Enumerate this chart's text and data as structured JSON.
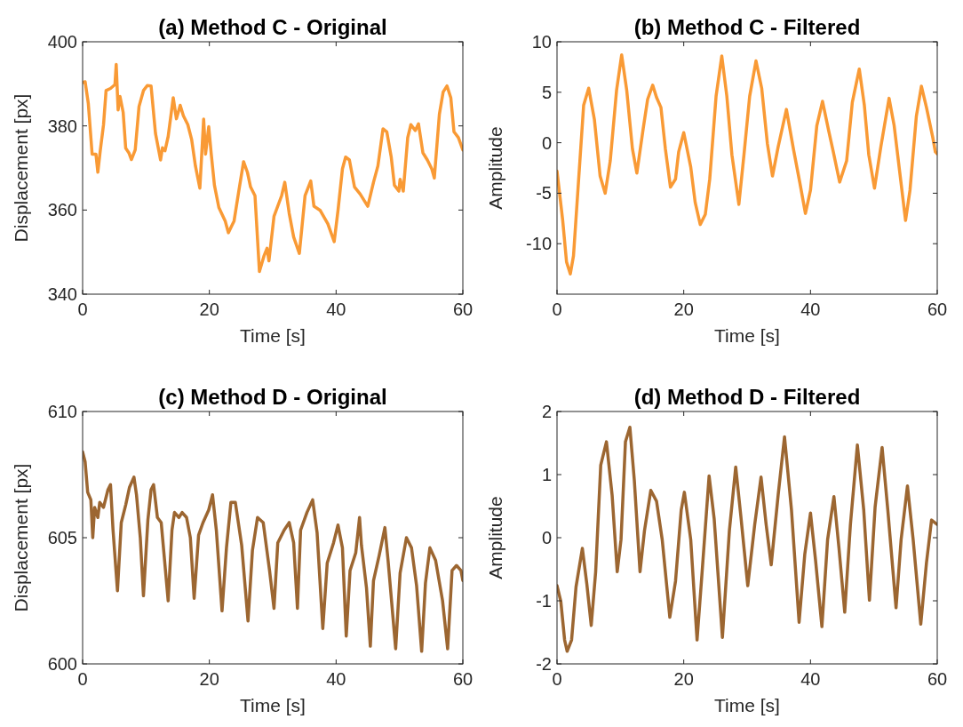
{
  "chart_data": [
    {
      "type": "line",
      "title": "(a) Method C - Original",
      "xlabel": "Time [s]",
      "ylabel": "Displacement [px]",
      "xlim": [
        0,
        60
      ],
      "xticks": [
        0,
        20,
        40,
        60
      ],
      "ylim": [
        340,
        400
      ],
      "yticks": [
        340,
        360,
        380,
        400
      ],
      "x": [
        0,
        0.4,
        0.9,
        1.5,
        2.1,
        2.4,
        2.8,
        3.3,
        3.7,
        4.4,
        5.1,
        5.3,
        5.6,
        5.9,
        6.4,
        6.8,
        7.3,
        7.7,
        8.3,
        8.9,
        9.6,
        10.2,
        10.8,
        11.5,
        12.3,
        12.6,
        13.0,
        13.5,
        14.3,
        14.8,
        15.4,
        15.9,
        16.6,
        17.2,
        17.8,
        18.5,
        19.1,
        19.4,
        19.9,
        20.3,
        20.8,
        21.5,
        22.5,
        23.0,
        23.9,
        24.6,
        25.4,
        26.0,
        26.5,
        27.2,
        27.9,
        28.6,
        29.1,
        29.4,
        30.2,
        31.4,
        31.9,
        32.6,
        33.3,
        34.2,
        35.1,
        36.0,
        36.5,
        37.5,
        38.7,
        39.7,
        40.3,
        41.0,
        41.5,
        42.1,
        42.9,
        43.8,
        45.0,
        45.9,
        46.6,
        47.4,
        48.0,
        48.7,
        49.2,
        49.9,
        50.1,
        50.6,
        51.3,
        51.8,
        52.5,
        53.0,
        53.7,
        54.4,
        55.1,
        55.5,
        56.3,
        56.9,
        57.5,
        58.1,
        58.6,
        59.3,
        60
      ],
      "series": [
        {
          "color": "#f99a35",
          "values": [
            390.3,
            390.5,
            385.3,
            373.3,
            373.3,
            369.0,
            374.3,
            380.3,
            388.4,
            388.9,
            389.8,
            394.6,
            383.8,
            387.0,
            383.2,
            374.7,
            373.6,
            372.0,
            374.3,
            384.6,
            388.4,
            389.6,
            389.5,
            378.2,
            371.9,
            374.8,
            374.1,
            377.5,
            386.7,
            381.7,
            384.9,
            382.4,
            380.3,
            376.8,
            370.5,
            365.2,
            381.6,
            373.3,
            379.8,
            373.3,
            365.9,
            360.6,
            357.4,
            354.6,
            357.4,
            364.1,
            371.5,
            369.0,
            365.5,
            363.4,
            345.4,
            349.0,
            350.9,
            347.9,
            358.5,
            363.4,
            366.6,
            359.2,
            353.6,
            349.7,
            363.4,
            366.9,
            360.9,
            359.9,
            356.7,
            352.5,
            359.9,
            369.8,
            372.6,
            371.9,
            365.5,
            363.8,
            360.9,
            366.6,
            370.5,
            379.3,
            378.6,
            372.6,
            365.9,
            364.5,
            367.3,
            364.5,
            377.2,
            380.3,
            378.9,
            380.5,
            373.6,
            371.9,
            369.8,
            367.6,
            382.8,
            388.1,
            389.5,
            386.7,
            378.6,
            377.2,
            374.3
          ]
        }
      ]
    },
    {
      "type": "line",
      "title": "(b) Method C - Filtered",
      "xlabel": "Time [s]",
      "ylabel": "Amplitude",
      "xlim": [
        0,
        60
      ],
      "xticks": [
        0,
        20,
        40,
        60
      ],
      "ylim": [
        -15,
        10
      ],
      "yticks": [
        -10,
        -5,
        0,
        5,
        10
      ],
      "x": [
        0,
        0.9,
        1.5,
        2.1,
        2.6,
        3.3,
        4.2,
        5.0,
        5.9,
        6.8,
        7.6,
        8.4,
        9.4,
        10.2,
        11.0,
        11.9,
        12.6,
        13.6,
        14.3,
        15.1,
        15.7,
        16.4,
        17.1,
        17.9,
        18.7,
        19.2,
        20.0,
        21.1,
        21.8,
        22.6,
        23.4,
        24.1,
        25.1,
        26.0,
        26.8,
        27.6,
        28.7,
        29.5,
        30.4,
        31.4,
        32.3,
        33.2,
        34.0,
        34.9,
        36.2,
        37.3,
        38.3,
        39.2,
        40.0,
        41.0,
        41.9,
        42.9,
        43.6,
        44.6,
        45.7,
        46.6,
        47.7,
        48.5,
        49.2,
        50.1,
        51.1,
        52.4,
        53.2,
        54.1,
        55.0,
        55.7,
        56.7,
        57.5,
        58.3,
        59.3,
        59.7,
        60
      ],
      "series": [
        {
          "color": "#f99a35",
          "values": [
            -2.8,
            -7.7,
            -11.8,
            -13.0,
            -11.2,
            -4.7,
            3.7,
            5.4,
            2.3,
            -3.3,
            -5.0,
            -1.8,
            5.2,
            8.7,
            5.2,
            -0.6,
            -3.0,
            1.4,
            4.3,
            5.7,
            4.5,
            3.5,
            -0.6,
            -4.4,
            -3.6,
            -0.9,
            1.0,
            -2.4,
            -5.9,
            -8.1,
            -7.1,
            -3.6,
            4.6,
            8.6,
            4.6,
            -1.2,
            -6.1,
            -1.2,
            4.6,
            8.1,
            5.4,
            -0.1,
            -3.3,
            -0.4,
            3.3,
            -0.6,
            -3.9,
            -7.0,
            -4.7,
            1.7,
            4.1,
            1.1,
            -0.9,
            -3.9,
            -1.8,
            4.0,
            7.3,
            3.7,
            -1.2,
            -4.5,
            -0.4,
            4.4,
            1.7,
            -3.0,
            -7.7,
            -4.7,
            2.6,
            5.6,
            3.5,
            0.5,
            -0.9,
            -1.1
          ]
        }
      ]
    },
    {
      "type": "line",
      "title": "(c) Method D - Original",
      "xlabel": "Time [s]",
      "ylabel": "Displacement [px]",
      "xlim": [
        0,
        60
      ],
      "xticks": [
        0,
        20,
        40,
        60
      ],
      "ylim": [
        600,
        610
      ],
      "yticks": [
        600,
        605,
        610
      ],
      "x": [
        0,
        0.4,
        0.8,
        1.3,
        1.6,
        1.9,
        2.4,
        2.7,
        3.3,
        4.0,
        4.4,
        4.8,
        5.5,
        6.1,
        6.8,
        7.4,
        8.1,
        8.5,
        9.1,
        9.6,
        10.3,
        10.8,
        11.2,
        11.8,
        12.4,
        13.5,
        14.1,
        14.5,
        15.2,
        15.7,
        16.4,
        17.0,
        17.6,
        18.3,
        19.0,
        19.9,
        20.5,
        21.1,
        22.0,
        22.7,
        23.4,
        24.1,
        25.1,
        26.1,
        26.8,
        27.6,
        28.5,
        29.5,
        30.2,
        30.8,
        31.8,
        32.6,
        33.3,
        33.9,
        34.4,
        35.4,
        36.3,
        37.0,
        37.9,
        38.6,
        39.6,
        40.3,
        41.0,
        41.6,
        42.2,
        43.1,
        43.7,
        44.0,
        44.8,
        45.4,
        45.9,
        46.8,
        47.7,
        48.2,
        49.4,
        50.1,
        51.1,
        51.9,
        52.7,
        53.5,
        54.1,
        54.8,
        55.7,
        56.8,
        57.6,
        58.3,
        59.0,
        59.7,
        60
      ],
      "series": [
        {
          "color": "#9c6631",
          "values": [
            608.4,
            608.0,
            606.8,
            606.5,
            605.0,
            606.2,
            605.8,
            606.4,
            606.2,
            606.9,
            607.1,
            605.3,
            602.9,
            605.6,
            606.3,
            607.0,
            607.4,
            606.7,
            605.0,
            602.7,
            605.7,
            606.9,
            607.1,
            605.8,
            605.6,
            602.5,
            605.3,
            606.0,
            605.8,
            606.0,
            605.8,
            605.0,
            602.6,
            605.1,
            605.6,
            606.1,
            606.7,
            605.3,
            602.1,
            604.6,
            606.4,
            606.4,
            604.7,
            601.7,
            604.5,
            605.8,
            605.6,
            603.7,
            602.2,
            604.8,
            605.3,
            605.6,
            604.8,
            602.2,
            605.3,
            606.0,
            606.5,
            605.2,
            601.4,
            604.0,
            604.8,
            605.5,
            604.6,
            601.1,
            603.7,
            604.4,
            605.8,
            604.7,
            603.0,
            600.7,
            603.3,
            604.3,
            605.4,
            604.1,
            600.6,
            603.6,
            605.0,
            604.6,
            603.1,
            600.5,
            603.2,
            604.6,
            604.1,
            602.5,
            600.6,
            603.7,
            603.9,
            603.7,
            603.3
          ]
        }
      ]
    },
    {
      "type": "line",
      "title": "(d) Method D - Filtered",
      "xlabel": "Time [s]",
      "ylabel": "Amplitude",
      "xlim": [
        0,
        60
      ],
      "xticks": [
        0,
        20,
        40,
        60
      ],
      "ylim": [
        -2,
        2
      ],
      "yticks": [
        -2,
        -1,
        0,
        1,
        2
      ],
      "x": [
        0,
        0.6,
        1.2,
        1.6,
        2.3,
        3.0,
        4.0,
        4.7,
        5.4,
        6.1,
        6.9,
        7.8,
        8.7,
        9.5,
        10.1,
        10.8,
        11.5,
        12.2,
        13.1,
        13.8,
        14.8,
        15.7,
        16.6,
        17.8,
        18.7,
        19.6,
        20.1,
        21.1,
        22.1,
        22.9,
        24.0,
        24.8,
        26.1,
        27.2,
        28.2,
        29.0,
        30.1,
        31.2,
        32.2,
        33.0,
        33.8,
        34.9,
        35.9,
        37.0,
        38.2,
        39.1,
        40.0,
        40.8,
        41.8,
        42.7,
        43.7,
        44.5,
        45.4,
        46.3,
        47.4,
        48.4,
        49.3,
        50.2,
        51.3,
        52.2,
        53.5,
        54.3,
        55.3,
        56.2,
        57.4,
        58.3,
        59.1,
        60
      ],
      "series": [
        {
          "color": "#9c6631",
          "values": [
            -0.76,
            -1.01,
            -1.62,
            -1.8,
            -1.62,
            -0.78,
            -0.17,
            -0.73,
            -1.39,
            -0.54,
            1.15,
            1.52,
            0.67,
            -0.54,
            -0.03,
            1.52,
            1.75,
            0.91,
            -0.54,
            0.11,
            0.75,
            0.58,
            -0.03,
            -1.26,
            -0.69,
            0.44,
            0.72,
            -0.03,
            -1.62,
            -0.54,
            0.98,
            0.3,
            -1.58,
            0.11,
            1.12,
            0.35,
            -0.76,
            0.21,
            0.96,
            0.21,
            -0.43,
            0.68,
            1.6,
            0.44,
            -1.34,
            -0.26,
            0.39,
            -0.36,
            -1.41,
            -0.03,
            0.65,
            -0.17,
            -1.18,
            0.21,
            1.47,
            0.44,
            -0.99,
            0.49,
            1.43,
            0.44,
            -1.11,
            -0.03,
            0.82,
            -0.03,
            -1.37,
            -0.4,
            0.28,
            0.21
          ]
        }
      ]
    }
  ]
}
